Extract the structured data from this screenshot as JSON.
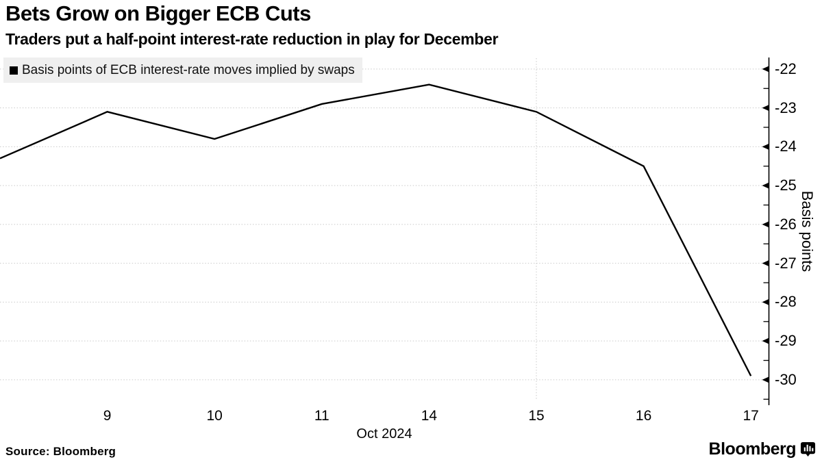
{
  "header": {
    "title": "Bets Grow on Bigger ECB Cuts",
    "subtitle": "Traders put a half-point interest-rate reduction in play for December"
  },
  "legend": {
    "swatch_color": "#000000",
    "label": "Basis points of ECB interest-rate moves implied by swaps"
  },
  "chart_data": {
    "type": "line",
    "title": "Bets Grow on Bigger ECB Cuts",
    "subtitle": "Traders put a half-point interest-rate reduction in play for December",
    "legend_position": "top-left",
    "series": [
      {
        "name": "Basis points of ECB interest-rate moves implied by swaps",
        "color": "#000000",
        "x_dates": [
          "Oct 8",
          "Oct 9",
          "Oct 10",
          "Oct 11",
          "Oct 14",
          "Oct 15",
          "Oct 16",
          "Oct 17"
        ],
        "values": [
          -24.3,
          -23.1,
          -23.8,
          -22.9,
          -22.4,
          -23.1,
          -24.5,
          -29.9
        ]
      }
    ],
    "x_axis": {
      "label": "Oct 2024",
      "tick_labels": [
        "9",
        "10",
        "11",
        "14",
        "15",
        "16",
        "17"
      ],
      "tick_slots": [
        1,
        2,
        3,
        4,
        5,
        6,
        7
      ]
    },
    "y_axis": {
      "label": "Basis points",
      "side": "right",
      "tick_labels": [
        "-22",
        "-23",
        "-24",
        "-25",
        "-26",
        "-27",
        "-28",
        "-29",
        "-30"
      ],
      "tick_values": [
        -22,
        -23,
        -24,
        -25,
        -26,
        -27,
        -28,
        -29,
        -30
      ],
      "ylim": [
        -30.53,
        -21.72
      ]
    },
    "grid": {
      "horizontal": "dotted at each major tick",
      "vertical_line_slot": 5,
      "vertical_line_label": "Oct 15"
    }
  },
  "footer": {
    "source": "Source: Bloomberg",
    "logo_text": "Bloomberg"
  },
  "colors": {
    "background": "#ffffff",
    "text": "#000000",
    "line": "#000000",
    "grid": "#c9c9c9",
    "legend_bg": "#efefef",
    "axis": "#000000"
  }
}
